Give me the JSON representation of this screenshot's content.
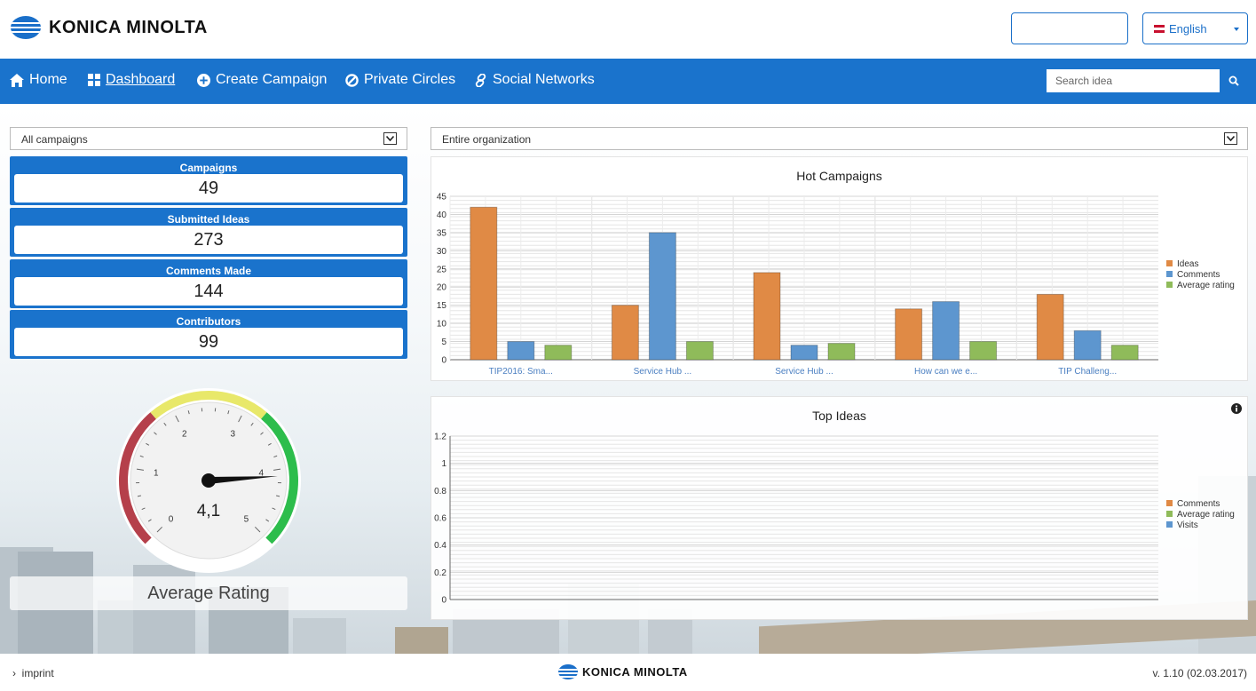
{
  "brand": {
    "name": "KONICA MINOLTA"
  },
  "header": {
    "language": "English"
  },
  "nav": {
    "items": [
      {
        "label": "Home",
        "icon": "home-icon"
      },
      {
        "label": "Dashboard",
        "icon": "dashboard-grid-icon",
        "active": true
      },
      {
        "label": "Create Campaign",
        "icon": "plus-circle-icon"
      },
      {
        "label": "Private Circles",
        "icon": "ban-circle-icon"
      },
      {
        "label": "Social Networks",
        "icon": "link-icon"
      }
    ],
    "search_placeholder": "Search idea"
  },
  "filters": {
    "campaign": "All campaigns",
    "scope": "Entire organization"
  },
  "stats": [
    {
      "label": "Campaigns",
      "value": "49"
    },
    {
      "label": "Submitted Ideas",
      "value": "273"
    },
    {
      "label": "Comments Made",
      "value": "144"
    },
    {
      "label": "Contributors",
      "value": "99"
    }
  ],
  "gauge": {
    "value": 4.1,
    "display": "4,1",
    "label": "Average Rating",
    "min": 0,
    "max": 5,
    "ticks": [
      "0",
      "1",
      "2",
      "3",
      "4",
      "5"
    ],
    "colors": {
      "low": "#b5404b",
      "mid": "#e8e86a",
      "high": "#2dbd4c"
    }
  },
  "chart_data": [
    {
      "type": "bar",
      "title": "Hot Campaigns",
      "categories": [
        "TIP2016: Sma...",
        "Service Hub ...",
        "Service Hub ...",
        "How can we e...",
        "TIP Challeng..."
      ],
      "series": [
        {
          "name": "Ideas",
          "color": "#e08a45",
          "values": [
            42,
            15,
            24,
            14,
            18
          ]
        },
        {
          "name": "Comments",
          "color": "#5d96cf",
          "values": [
            5,
            35,
            4,
            16,
            8
          ]
        },
        {
          "name": "Average rating",
          "color": "#8fbb5a",
          "values": [
            4,
            5,
            4.5,
            5,
            4
          ]
        }
      ],
      "ylim": [
        0,
        45
      ],
      "yticks": [
        "0",
        "5",
        "10",
        "15",
        "20",
        "25",
        "30",
        "35",
        "40",
        "45"
      ],
      "legend": "right",
      "grid": true
    },
    {
      "type": "bar",
      "title": "Top Ideas",
      "categories": [],
      "series": [
        {
          "name": "Comments",
          "color": "#e08a45",
          "values": []
        },
        {
          "name": "Average rating",
          "color": "#8fbb5a",
          "values": []
        },
        {
          "name": "Visits",
          "color": "#5d96cf",
          "values": []
        }
      ],
      "ylim": [
        0,
        1.2
      ],
      "yticks": [
        "0",
        "0.2",
        "0.4",
        "0.6",
        "0.8",
        "1",
        "1.2"
      ],
      "legend": "right",
      "grid": true
    }
  ],
  "footer": {
    "imprint": "imprint",
    "version": "v. 1.10 (02.03.2017)"
  }
}
